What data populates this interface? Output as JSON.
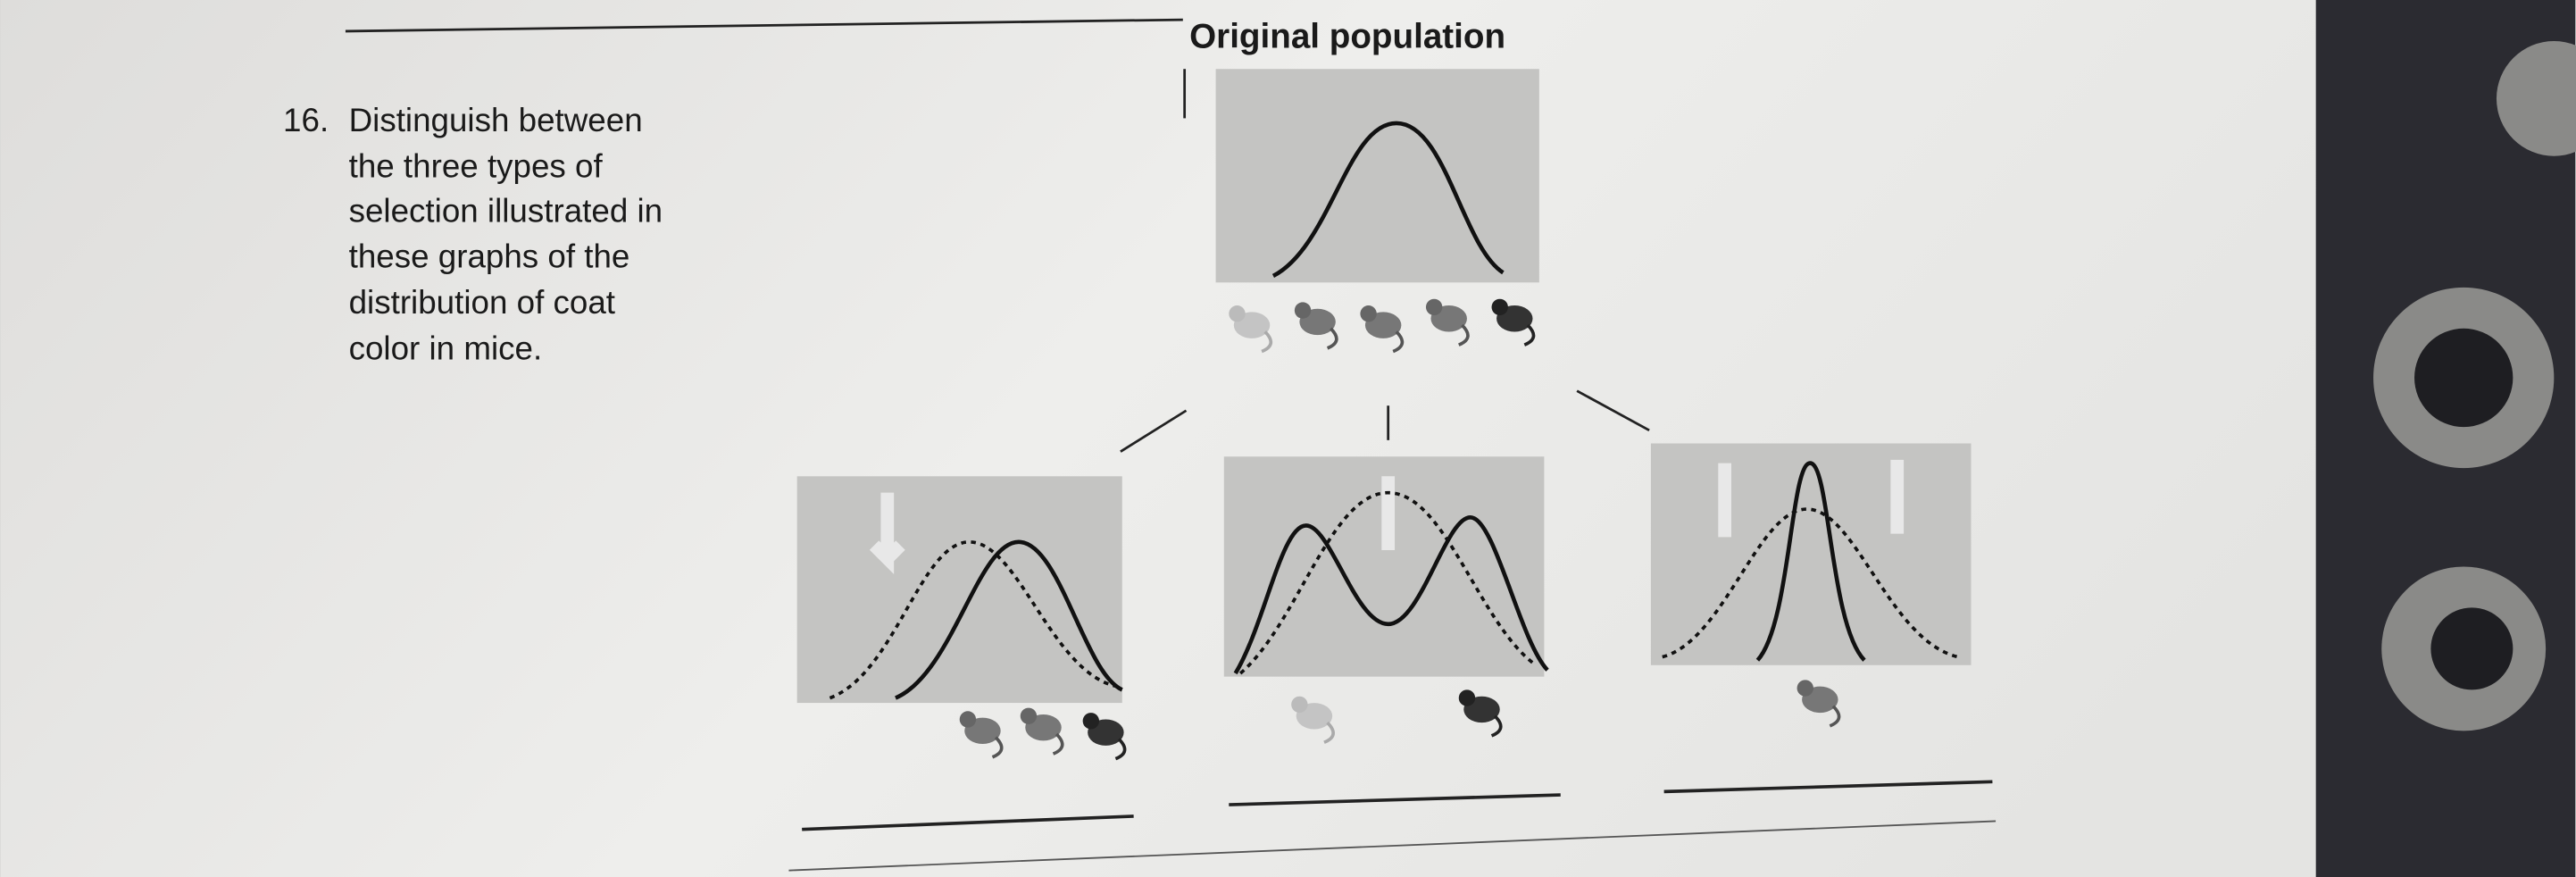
{
  "question": {
    "number": "16.",
    "lines": [
      "Distinguish between",
      "the three types of",
      "selection illustrated in",
      "these graphs of the",
      "distribution of coat",
      "color in mice."
    ]
  },
  "figure": {
    "title": "Original population"
  }
}
